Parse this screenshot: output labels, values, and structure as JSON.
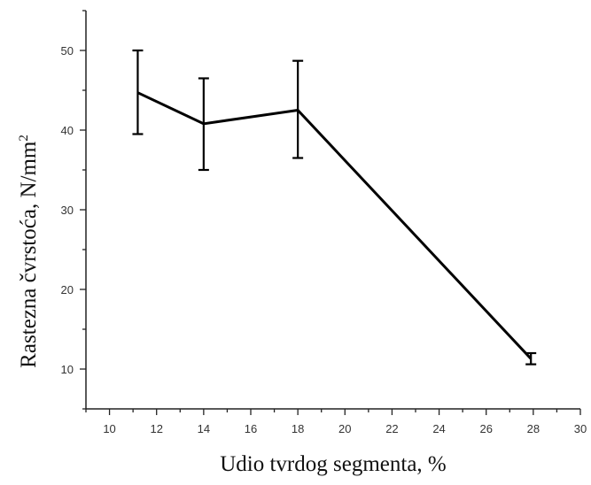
{
  "chart_data": {
    "type": "line",
    "title": "",
    "xlabel": "Udio tvrdog segmenta, %",
    "ylabel_main": "Rastezna čvrstoća, N/mm",
    "ylabel_sup": "2",
    "xlim": [
      9,
      30
    ],
    "ylim": [
      5,
      55
    ],
    "x_ticks": [
      10,
      12,
      14,
      16,
      18,
      20,
      22,
      24,
      26,
      28,
      30
    ],
    "y_ticks": [
      10,
      20,
      30,
      40,
      50
    ],
    "grid": false,
    "series": [
      {
        "x": [
          11.2,
          14,
          18,
          27.9
        ],
        "y": [
          44.7,
          40.8,
          42.5,
          11.3
        ],
        "err_low": [
          39.5,
          35.0,
          36.5,
          10.6
        ],
        "err_high": [
          50.0,
          46.5,
          48.7,
          12.0
        ]
      }
    ],
    "color": "#000000"
  }
}
